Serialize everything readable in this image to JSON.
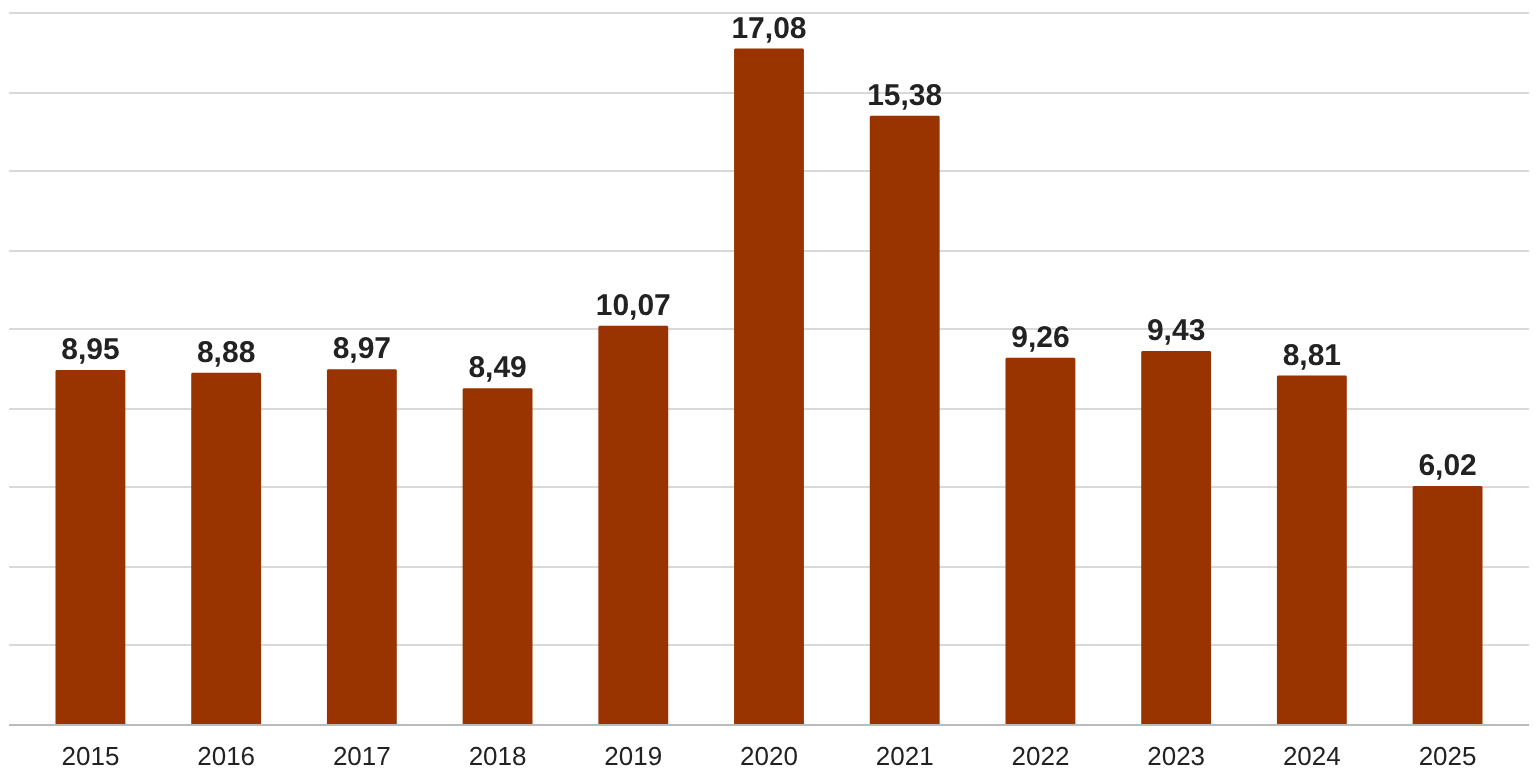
{
  "chart_data": {
    "type": "bar",
    "categories": [
      "2015",
      "2016",
      "2017",
      "2018",
      "2019",
      "2020",
      "2021",
      "2022",
      "2023",
      "2024",
      "2025"
    ],
    "values": [
      8.95,
      8.88,
      8.97,
      8.49,
      10.07,
      17.08,
      15.38,
      9.26,
      9.43,
      8.81,
      6.02
    ],
    "value_labels": [
      "8,95",
      "8,88",
      "8,97",
      "8,49",
      "10,07",
      "17,08",
      "15,38",
      "9,26",
      "9,43",
      "8,81",
      "6,02"
    ],
    "color": "#993300",
    "grid": "y",
    "tick_labels": "x"
  }
}
